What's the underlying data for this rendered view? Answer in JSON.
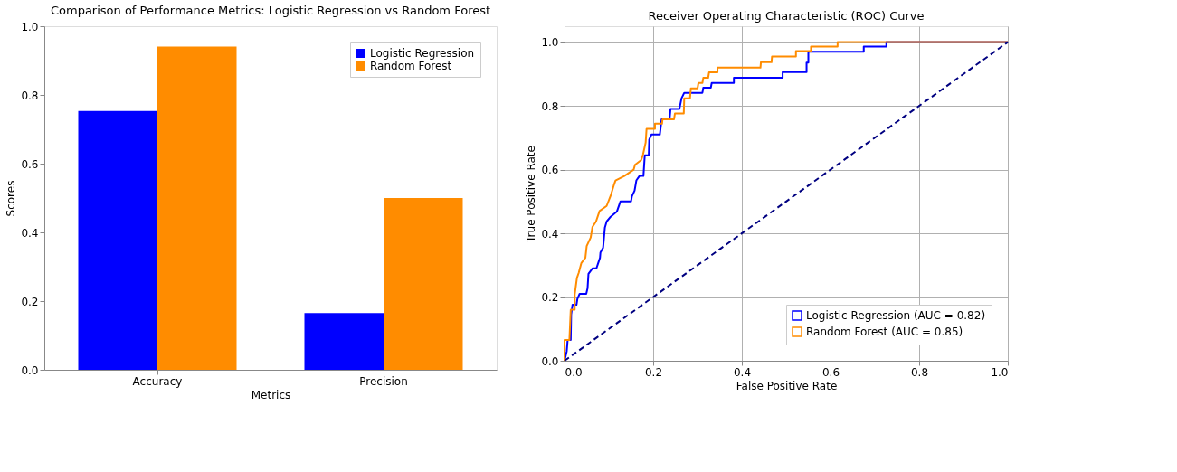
{
  "chart_data": [
    {
      "type": "bar",
      "title": "Comparison of Performance Metrics: Logistic Regression vs Random Forest",
      "xlabel": "Metrics",
      "ylabel": "Scores",
      "categories": [
        "Accuracy",
        "Precision"
      ],
      "series": [
        {
          "name": "Logistic Regression",
          "color": "#0000ff",
          "values": [
            0.753,
            0.165
          ]
        },
        {
          "name": "Random Forest",
          "color": "#ff8c00",
          "values": [
            0.941,
            0.5
          ]
        }
      ],
      "ylim": [
        0,
        1
      ],
      "yticks": [
        {
          "value": 0,
          "label": "0.0"
        },
        {
          "value": 0.2,
          "label": "0.2"
        },
        {
          "value": 0.4,
          "label": "0.4"
        },
        {
          "value": 0.6,
          "label": "0.6"
        },
        {
          "value": 0.8,
          "label": "0.8"
        },
        {
          "value": 1,
          "label": "1.0"
        }
      ],
      "legend": "top right",
      "grid": false
    },
    {
      "type": "line",
      "title": "Receiver Operating Characteristic (ROC) Curve",
      "xlabel": "False Positive Rate",
      "ylabel": "True Positive Rate",
      "series": [
        {
          "name": "Logistic Regression (AUC = 0.82)",
          "color": "#0000ff",
          "x": [
            0,
            0.005,
            0.007,
            0.014,
            0.015,
            0.018,
            0.027,
            0.029,
            0.034,
            0.049,
            0.052,
            0.054,
            0.063,
            0.072,
            0.076,
            0.08,
            0.081,
            0.087,
            0.091,
            0.095,
            0.104,
            0.118,
            0.126,
            0.15,
            0.152,
            0.158,
            0.162,
            0.169,
            0.178,
            0.181,
            0.19,
            0.191,
            0.196,
            0.215,
            0.219,
            0.237,
            0.239,
            0.259,
            0.264,
            0.27,
            0.311,
            0.313,
            0.33,
            0.332,
            0.382,
            0.382,
            0.492,
            0.492,
            0.546,
            0.546,
            0.55,
            0.55,
            0.675,
            0.675,
            0.726,
            0.726,
            1
          ],
          "values": [
            0,
            0.03,
            0.065,
            0.065,
            0.145,
            0.176,
            0.176,
            0.194,
            0.21,
            0.21,
            0.228,
            0.273,
            0.29,
            0.29,
            0.307,
            0.323,
            0.34,
            0.355,
            0.418,
            0.437,
            0.452,
            0.468,
            0.5,
            0.5,
            0.516,
            0.534,
            0.566,
            0.58,
            0.58,
            0.645,
            0.645,
            0.694,
            0.71,
            0.71,
            0.758,
            0.758,
            0.79,
            0.79,
            0.824,
            0.841,
            0.841,
            0.857,
            0.857,
            0.872,
            0.872,
            0.888,
            0.888,
            0.906,
            0.906,
            0.936,
            0.936,
            0.97,
            0.97,
            0.986,
            0.986,
            1,
            1
          ]
        },
        {
          "name": "Random Forest (AUC = 0.85)",
          "color": "#ff8c00",
          "x": [
            0,
            0,
            0.011,
            0.014,
            0.023,
            0.023,
            0.028,
            0.032,
            0.038,
            0.047,
            0.05,
            0.059,
            0.063,
            0.071,
            0.079,
            0.095,
            0.104,
            0.111,
            0.115,
            0.135,
            0.156,
            0.159,
            0.173,
            0.177,
            0.183,
            0.185,
            0.204,
            0.204,
            0.22,
            0.221,
            0.247,
            0.249,
            0.269,
            0.27,
            0.283,
            0.285,
            0.3,
            0.302,
            0.311,
            0.313,
            0.324,
            0.326,
            0.345,
            0.345,
            0.442,
            0.443,
            0.467,
            0.468,
            0.522,
            0.522,
            0.556,
            0.556,
            0.616,
            0.616,
            1
          ],
          "values": [
            0,
            0.065,
            0.065,
            0.16,
            0.16,
            0.208,
            0.26,
            0.276,
            0.307,
            0.323,
            0.36,
            0.387,
            0.42,
            0.437,
            0.47,
            0.486,
            0.518,
            0.55,
            0.566,
            0.58,
            0.6,
            0.615,
            0.63,
            0.647,
            0.685,
            0.728,
            0.728,
            0.744,
            0.744,
            0.758,
            0.758,
            0.776,
            0.776,
            0.824,
            0.824,
            0.855,
            0.855,
            0.872,
            0.872,
            0.888,
            0.888,
            0.905,
            0.905,
            0.92,
            0.92,
            0.937,
            0.937,
            0.955,
            0.955,
            0.972,
            0.972,
            0.986,
            0.986,
            1,
            1
          ]
        },
        {
          "color": "#000080",
          "line_style": "dashed",
          "x": [
            0,
            1
          ],
          "values": [
            0,
            1
          ]
        }
      ],
      "xlim": [
        0,
        1
      ],
      "ylim": [
        0,
        1.05
      ],
      "xticks": [
        {
          "value": 0,
          "label": "0.0"
        },
        {
          "value": 0.2,
          "label": "0.2"
        },
        {
          "value": 0.4,
          "label": "0.4"
        },
        {
          "value": 0.6,
          "label": "0.6"
        },
        {
          "value": 0.8,
          "label": "0.8"
        },
        {
          "value": 1,
          "label": "1.0"
        }
      ],
      "yticks": [
        {
          "value": 0,
          "label": "0.0"
        },
        {
          "value": 0.2,
          "label": "0.2"
        },
        {
          "value": 0.4,
          "label": "0.4"
        },
        {
          "value": 0.6,
          "label": "0.6"
        },
        {
          "value": 0.8,
          "label": "0.8"
        },
        {
          "value": 1,
          "label": "1.0"
        }
      ],
      "legend": "bottom right",
      "grid": true,
      "marker": "none"
    }
  ]
}
